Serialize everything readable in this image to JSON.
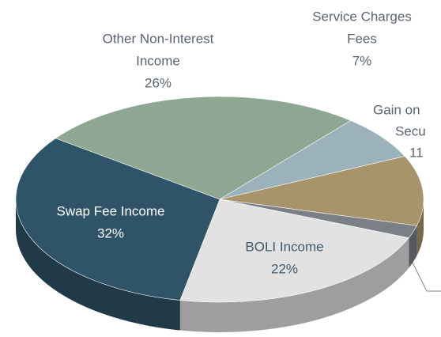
{
  "chart_data": {
    "type": "pie3d",
    "categories": [
      [
        "Other Non-Interest",
        "Income"
      ],
      [
        "Service Charges",
        "Fees"
      ],
      [
        "Gain on",
        "Secu"
      ],
      null,
      [
        "BOLI Income"
      ],
      [
        "Swap Fee Income"
      ]
    ],
    "values": [
      26,
      7,
      11,
      2,
      22,
      32
    ],
    "value_labels": [
      "26%",
      "7%",
      "11",
      null,
      "22%",
      "32%"
    ],
    "colors": [
      "#8da792",
      "#9cb2ba",
      "#a8946a",
      "#7b8087",
      "#e2e2e2",
      "#2f5367"
    ]
  }
}
